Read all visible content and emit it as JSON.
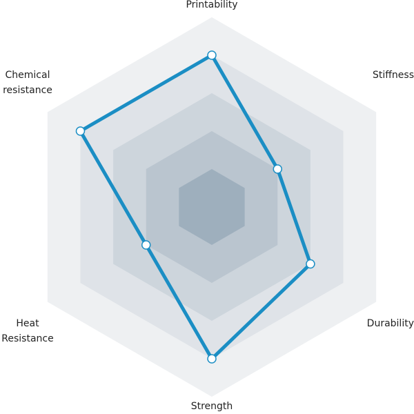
{
  "chart_data": {
    "type": "radar",
    "categories": [
      "Printability",
      "Stiffness",
      "Durability",
      "Strength",
      "Heat Resistance",
      "Chemical resistance"
    ],
    "values": [
      4,
      2,
      3,
      4,
      2,
      4
    ],
    "color": "#1b8ec4",
    "rlim": [
      0,
      5
    ],
    "rticks": [
      1,
      2,
      3,
      4,
      5
    ],
    "grid": true
  }
}
